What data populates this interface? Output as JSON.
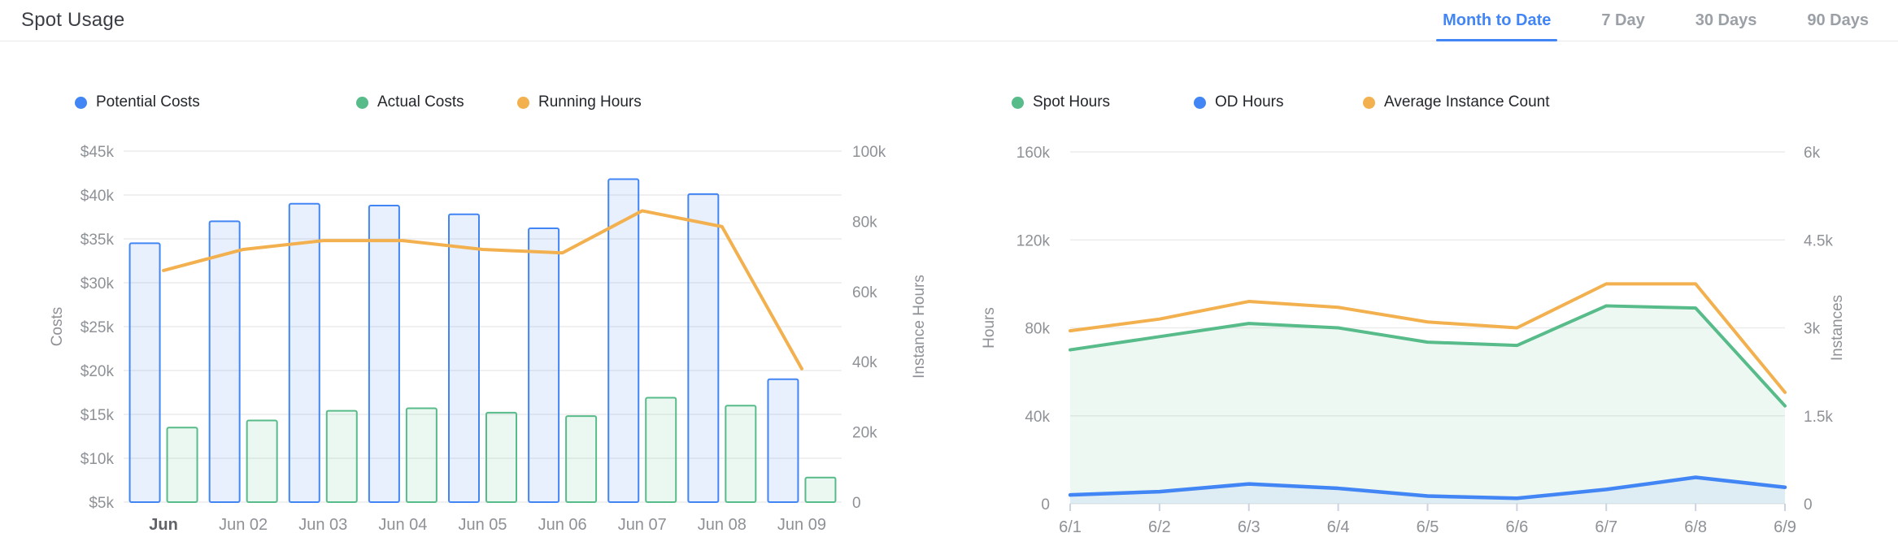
{
  "header": {
    "title": "Spot Usage"
  },
  "tabs": {
    "items": [
      {
        "label": "Month to Date",
        "active": true
      },
      {
        "label": "7 Day",
        "active": false
      },
      {
        "label": "30 Days",
        "active": false
      },
      {
        "label": "90 Days",
        "active": false
      }
    ]
  },
  "colors": {
    "blue": "#4285f4",
    "green": "#57bb8a",
    "orange": "#f2b04e",
    "blue_fill": "rgba(66,133,244,0.12)",
    "green_fill": "rgba(87,187,138,0.12)",
    "green_area": "rgba(87,187,138,0.10)",
    "blue_area": "rgba(66,133,244,0.09)",
    "grid": "#ececec",
    "axis_text": "#8e9196",
    "tab_inactive": "#9aa0a6",
    "tick_mark": "#ccd3e0"
  },
  "chart_data": [
    {
      "type": "bar",
      "categories": [
        "Jun",
        "Jun 02",
        "Jun 03",
        "Jun 04",
        "Jun 05",
        "Jun 06",
        "Jun 07",
        "Jun 08",
        "Jun 09"
      ],
      "series": [
        {
          "name": "Potential Costs",
          "type": "bar",
          "axis": "left",
          "color_key": "blue",
          "values": [
            34500,
            37000,
            39000,
            38800,
            37800,
            36200,
            41800,
            40100,
            19000
          ]
        },
        {
          "name": "Actual Costs",
          "type": "bar",
          "axis": "left",
          "color_key": "green",
          "values": [
            13500,
            14300,
            15400,
            15700,
            15200,
            14800,
            16900,
            16000,
            7800
          ]
        },
        {
          "name": "Running Hours",
          "type": "line",
          "axis": "right",
          "color_key": "orange",
          "values": [
            66000,
            72000,
            74500,
            74500,
            72000,
            71000,
            83000,
            78500,
            38000
          ]
        }
      ],
      "y_left": {
        "label": "Costs",
        "ticks": [
          "$5k",
          "$10k",
          "$15k",
          "$20k",
          "$25k",
          "$30k",
          "$35k",
          "$40k",
          "$45k"
        ],
        "min": 5000,
        "max": 45000
      },
      "y_right": {
        "label": "Instance Hours",
        "ticks": [
          "0",
          "20k",
          "40k",
          "60k",
          "80k",
          "100k"
        ],
        "min": 0,
        "max": 100000
      },
      "legend": [
        {
          "label": "Potential Costs",
          "color_key": "blue"
        },
        {
          "label": "Actual Costs",
          "color_key": "green"
        },
        {
          "label": "Running Hours",
          "color_key": "orange"
        }
      ]
    },
    {
      "type": "area",
      "categories": [
        "6/1",
        "6/2",
        "6/3",
        "6/4",
        "6/5",
        "6/6",
        "6/7",
        "6/8",
        "6/9"
      ],
      "series": [
        {
          "name": "Spot Hours",
          "type": "area",
          "axis": "left",
          "color_key": "green",
          "values": [
            70000,
            76000,
            82000,
            80000,
            73500,
            72000,
            90000,
            89000,
            44500
          ]
        },
        {
          "name": "OD Hours",
          "type": "area",
          "axis": "left",
          "color_key": "blue",
          "values": [
            4000,
            5500,
            9000,
            7000,
            3500,
            2500,
            6500,
            12000,
            7500
          ]
        },
        {
          "name": "Average Instance Count",
          "type": "line",
          "axis": "right",
          "color_key": "orange",
          "values": [
            2950,
            3150,
            3450,
            3350,
            3100,
            3000,
            3750,
            3750,
            1900
          ]
        }
      ],
      "y_left": {
        "label": "Hours",
        "ticks": [
          "0",
          "40k",
          "80k",
          "120k",
          "160k"
        ],
        "min": 0,
        "max": 160000
      },
      "y_right": {
        "label": "Instances",
        "ticks": [
          "0",
          "1.5k",
          "3k",
          "4.5k",
          "6k"
        ],
        "min": 0,
        "max": 6000
      },
      "legend": [
        {
          "label": "Spot Hours",
          "color_key": "green"
        },
        {
          "label": "OD Hours",
          "color_key": "blue"
        },
        {
          "label": "Average Instance Count",
          "color_key": "orange"
        }
      ]
    }
  ]
}
